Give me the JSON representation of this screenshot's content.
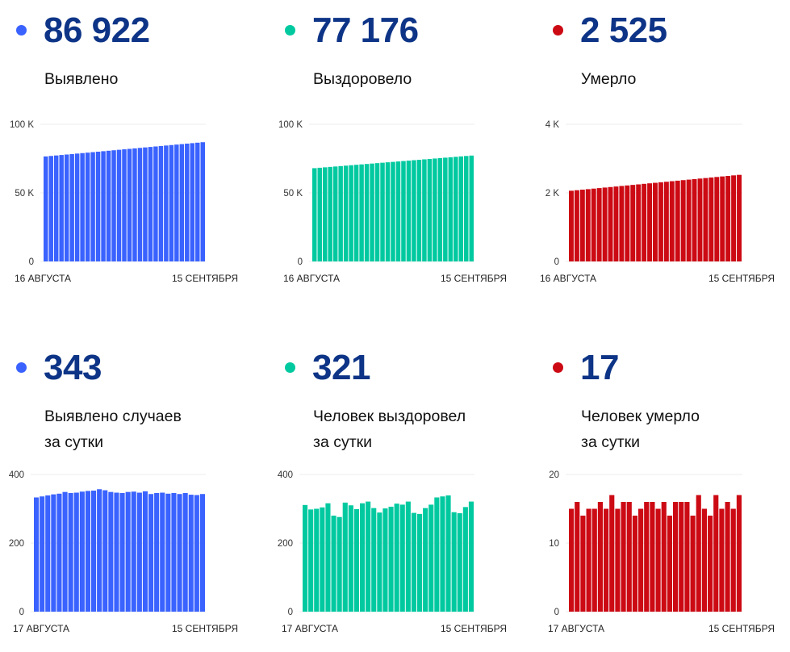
{
  "colors": {
    "detected": "#3a62ff",
    "recovered": "#00c9a0",
    "died": "#cc0a14",
    "number": "#0d3486"
  },
  "chart_data": [
    {
      "type": "bar",
      "headline": "86 922",
      "title": "Выявлено",
      "color": "#3a62ff",
      "x_start": "16 АВГУСТА",
      "x_end": "15 СЕНТЯБРЯ",
      "ylim": [
        0,
        100000
      ],
      "yticks": [
        "0",
        "50 K",
        "100 K"
      ],
      "ytick_values": [
        0,
        50000,
        100000
      ],
      "grid": true,
      "values": [
        76560,
        76905,
        77251,
        77596,
        77942,
        78287,
        78632,
        78978,
        79323,
        79669,
        80014,
        80359,
        80705,
        81050,
        81396,
        81741,
        82086,
        82432,
        82777,
        83123,
        83468,
        83813,
        84159,
        84504,
        84850,
        85195,
        85540,
        85886,
        86231,
        86577,
        86922
      ]
    },
    {
      "type": "bar",
      "headline": "77 176",
      "title": "Выздоровело",
      "color": "#00c9a0",
      "x_start": "16 АВГУСТА",
      "x_end": "15 СЕНТЯБРЯ",
      "ylim": [
        0,
        100000
      ],
      "yticks": [
        "0",
        "50 K",
        "100 K"
      ],
      "ytick_values": [
        0,
        50000,
        100000
      ],
      "grid": true,
      "values": [
        67990,
        68296,
        68602,
        68909,
        69215,
        69521,
        69827,
        70133,
        70440,
        70746,
        71052,
        71358,
        71664,
        71971,
        72277,
        72583,
        72889,
        73195,
        73502,
        73808,
        74114,
        74420,
        74726,
        75033,
        75339,
        75645,
        75951,
        76257,
        76564,
        76870,
        77176
      ]
    },
    {
      "type": "bar",
      "headline": "2 525",
      "title": "Умерло",
      "color": "#cc0a14",
      "x_start": "16 АВГУСТА",
      "x_end": "15 СЕНТЯБРЯ",
      "ylim": [
        0,
        4000
      ],
      "yticks": [
        "0",
        "2 K",
        "4 K"
      ],
      "ytick_values": [
        0,
        2000,
        4000
      ],
      "grid": true,
      "values": [
        2062,
        2077,
        2093,
        2108,
        2124,
        2139,
        2155,
        2170,
        2185,
        2201,
        2216,
        2232,
        2247,
        2263,
        2278,
        2293,
        2309,
        2324,
        2340,
        2355,
        2371,
        2386,
        2401,
        2417,
        2432,
        2448,
        2463,
        2479,
        2494,
        2510,
        2525
      ]
    },
    {
      "type": "bar",
      "headline": "343",
      "title": "Выявлено случаев",
      "title2": "за сутки",
      "color": "#3a62ff",
      "x_start": "17 АВГУСТА",
      "x_end": "15 СЕНТЯБРЯ",
      "ylim": [
        0,
        400
      ],
      "yticks": [
        "0",
        "200",
        "400"
      ],
      "ytick_values": [
        0,
        200,
        400
      ],
      "grid": true,
      "values": [
        333,
        336,
        339,
        342,
        344,
        349,
        346,
        347,
        350,
        352,
        353,
        357,
        354,
        349,
        347,
        346,
        349,
        350,
        347,
        351,
        343,
        346,
        347,
        344,
        346,
        343,
        346,
        341,
        340,
        343
      ]
    },
    {
      "type": "bar",
      "headline": "321",
      "title": "Человек выздоровел",
      "title2": "за сутки",
      "color": "#00c9a0",
      "x_start": "17 АВГУСТА",
      "x_end": "15 СЕНТЯБРЯ",
      "ylim": [
        0,
        400
      ],
      "yticks": [
        "0",
        "200",
        "400"
      ],
      "ytick_values": [
        0,
        200,
        400
      ],
      "grid": true,
      "values": [
        311,
        298,
        300,
        304,
        316,
        280,
        276,
        318,
        310,
        299,
        316,
        321,
        302,
        289,
        301,
        306,
        315,
        312,
        321,
        288,
        285,
        302,
        312,
        333,
        336,
        339,
        290,
        287,
        305,
        321
      ]
    },
    {
      "type": "bar",
      "headline": "17",
      "title": "Человек умерло",
      "title2": "за сутки",
      "color": "#cc0a14",
      "x_start": "17 АВГУСТА",
      "x_end": "15 СЕНТЯБРЯ",
      "ylim": [
        0,
        20
      ],
      "yticks": [
        "0",
        "10",
        "20"
      ],
      "ytick_values": [
        0,
        10,
        20
      ],
      "grid": true,
      "values": [
        15,
        16,
        14,
        15,
        15,
        16,
        15,
        17,
        15,
        16,
        16,
        14,
        15,
        16,
        16,
        15,
        16,
        14,
        16,
        16,
        16,
        14,
        17,
        15,
        14,
        17,
        15,
        16,
        15,
        17
      ]
    }
  ]
}
